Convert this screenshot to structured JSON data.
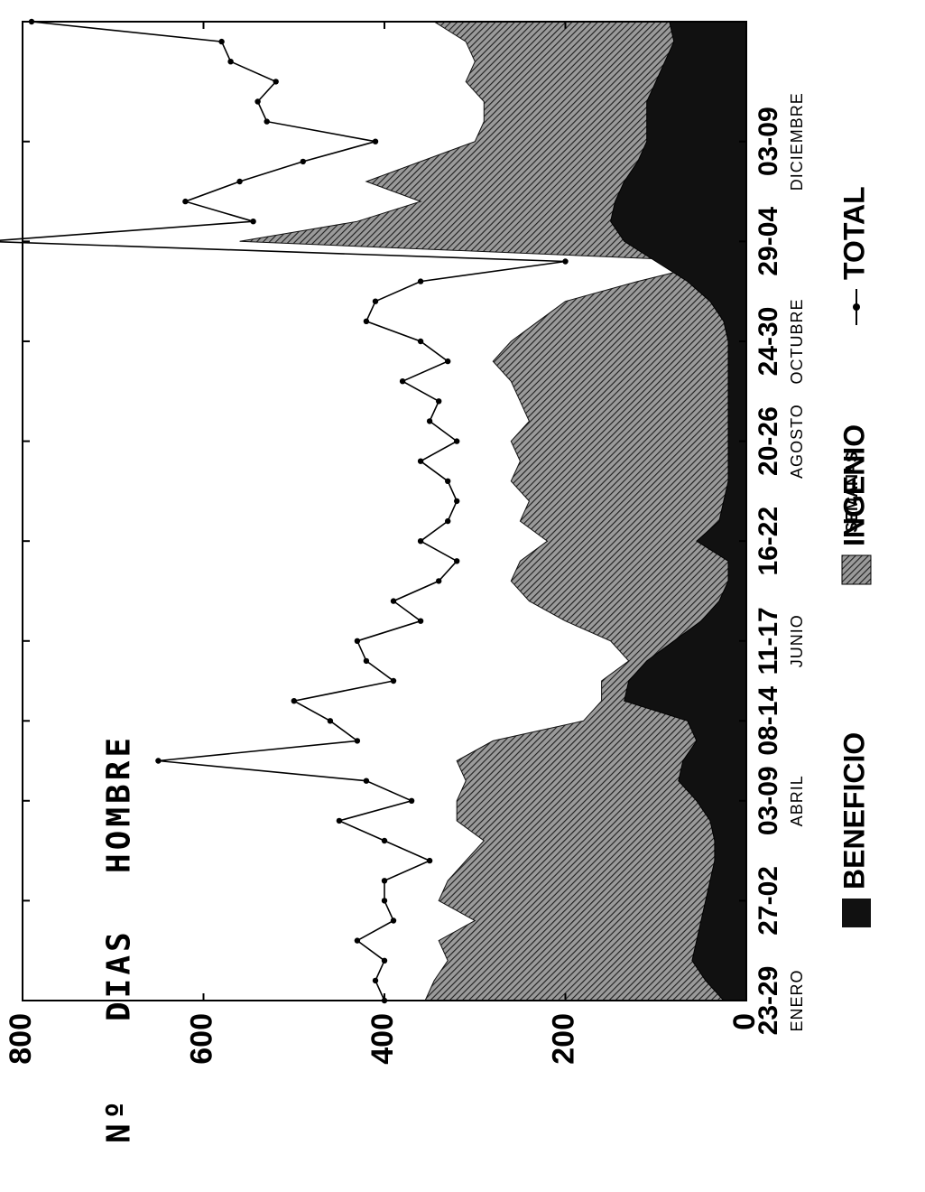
{
  "chart_data": {
    "type": "area",
    "ylabel_lines": [
      "Nº",
      "DIAS",
      "HOMBRE"
    ],
    "xlabel": "SEMANAS",
    "ylim": [
      0,
      800
    ],
    "y_ticks": [
      0,
      200,
      400,
      600,
      800
    ],
    "x_count": 50,
    "x_tick_labels": [
      {
        "index": 0,
        "week": "23-29",
        "month": "ENERO"
      },
      {
        "index": 5,
        "week": "27-02",
        "month": ""
      },
      {
        "index": 10,
        "week": "03-09",
        "month": "ABRIL"
      },
      {
        "index": 14,
        "week": "08-14",
        "month": ""
      },
      {
        "index": 18,
        "week": "11-17",
        "month": "JUNIO"
      },
      {
        "index": 23,
        "week": "16-22",
        "month": ""
      },
      {
        "index": 28,
        "week": "20-26",
        "month": "AGOSTO"
      },
      {
        "index": 33,
        "week": "24-30",
        "month": "OCTUBRE"
      },
      {
        "index": 38,
        "week": "29-04",
        "month": ""
      },
      {
        "index": 43,
        "week": "03-09",
        "month": "DICIEMBRE"
      }
    ],
    "series": [
      {
        "name": "BENEFICIO",
        "style": "solid-black",
        "values": [
          25,
          45,
          60,
          55,
          50,
          45,
          40,
          35,
          35,
          40,
          55,
          75,
          70,
          55,
          65,
          135,
          130,
          110,
          80,
          50,
          30,
          20,
          20,
          55,
          30,
          25,
          20,
          20,
          20,
          20,
          20,
          20,
          20,
          20,
          25,
          40,
          65,
          100,
          135,
          150,
          145,
          135,
          120,
          110,
          110,
          110,
          100,
          90,
          80,
          85
        ]
      },
      {
        "name": "INGENIO",
        "style": "hatched",
        "values": [
          355,
          345,
          330,
          340,
          300,
          340,
          330,
          310,
          290,
          320,
          320,
          310,
          320,
          280,
          180,
          160,
          160,
          130,
          150,
          200,
          240,
          260,
          250,
          220,
          250,
          240,
          260,
          250,
          260,
          240,
          250,
          260,
          280,
          260,
          230,
          200,
          120,
          30,
          560,
          430,
          360,
          420,
          360,
          300,
          290,
          290,
          310,
          300,
          310,
          345
        ]
      },
      {
        "name": "TOTAL",
        "style": "line-markers",
        "values": [
          400,
          410,
          400,
          430,
          390,
          400,
          400,
          350,
          400,
          450,
          370,
          420,
          650,
          430,
          460,
          500,
          390,
          420,
          430,
          360,
          390,
          340,
          320,
          360,
          330,
          320,
          330,
          360,
          320,
          350,
          340,
          380,
          330,
          360,
          420,
          410,
          360,
          200,
          840,
          545,
          620,
          560,
          490,
          410,
          530,
          540,
          520,
          570,
          580,
          790
        ]
      }
    ],
    "legend": [
      "BENEFICIO",
      "INGENIO",
      "TOTAL"
    ],
    "legend_position": "bottom",
    "colors": {
      "beneficio": "#111111",
      "ingenio_hatch": "#222222",
      "total_line": "#000000"
    }
  }
}
